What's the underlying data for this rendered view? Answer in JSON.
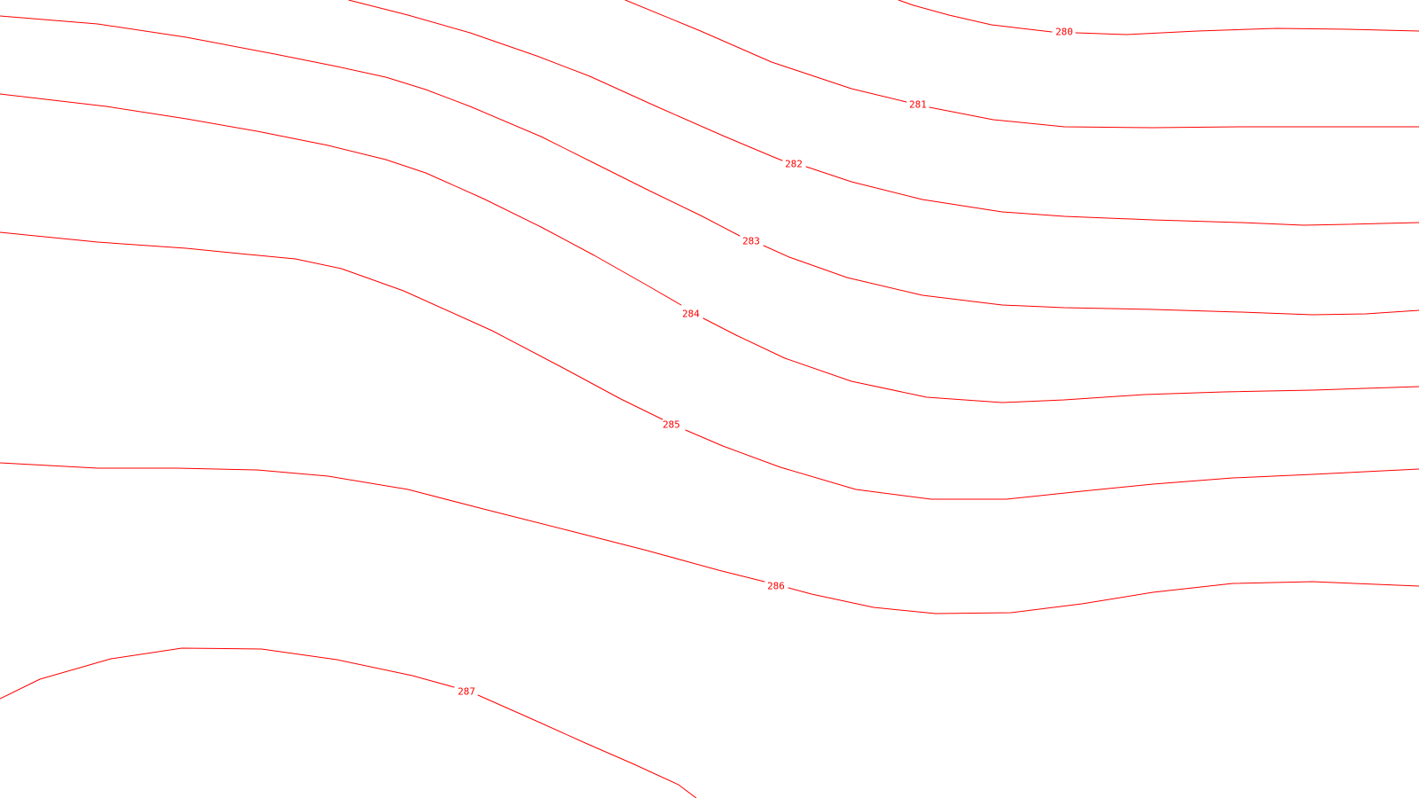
{
  "map": {
    "line_color": "#ff0000",
    "background_color": "#ffffff",
    "contours": [
      {
        "label": "280"
      },
      {
        "label": "281"
      },
      {
        "label": "282"
      },
      {
        "label": "283"
      },
      {
        "label": "284"
      },
      {
        "label": "285"
      },
      {
        "label": "286"
      },
      {
        "label": "287"
      }
    ]
  }
}
